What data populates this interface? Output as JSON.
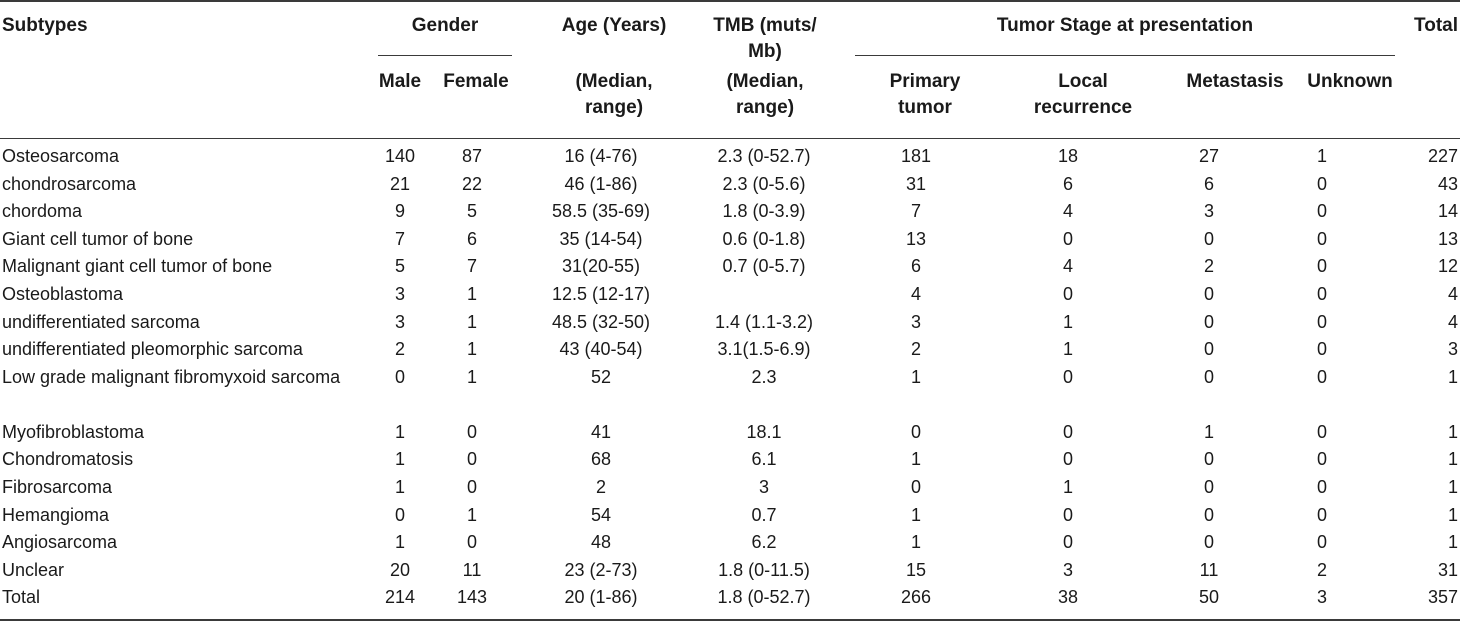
{
  "headers": {
    "subtypes": "Subtypes",
    "gender": "Gender",
    "male": "Male",
    "female": "Female",
    "age_l1": "Age (Years)",
    "age_l2": "(Median,",
    "age_l3": "range)",
    "tmb_l1": "TMB (muts/",
    "tmb_l2": "Mb)",
    "tmb_l3": "(Median,",
    "tmb_l4": "range)",
    "stage": "Tumor Stage at presentation",
    "primary_l1": "Primary",
    "primary_l2": "tumor",
    "local_l1": "Local",
    "local_l2": "recurrence",
    "metastasis": "Metastasis",
    "unknown": "Unknown",
    "total": "Total"
  },
  "rows": [
    [
      "Osteosarcoma",
      "140",
      "87",
      "16 (4-76)",
      "2.3 (0-52.7)",
      "181",
      "18",
      "27",
      "1",
      "227"
    ],
    [
      "chondrosarcoma",
      "21",
      "22",
      "46 (1-86)",
      "2.3 (0-5.6)",
      "31",
      "6",
      "6",
      "0",
      "43"
    ],
    [
      "chordoma",
      "9",
      "5",
      "58.5 (35-69)",
      "1.8 (0-3.9)",
      "7",
      "4",
      "3",
      "0",
      "14"
    ],
    [
      "Giant cell tumor of bone",
      "7",
      "6",
      "35 (14-54)",
      "0.6 (0-1.8)",
      "13",
      "0",
      "0",
      "0",
      "13"
    ],
    [
      "Malignant giant cell tumor of bone",
      "5",
      "7",
      "31(20-55)",
      "0.7 (0-5.7)",
      "6",
      "4",
      "2",
      "0",
      "12"
    ],
    [
      "Osteoblastoma",
      "3",
      "1",
      "12.5 (12-17)",
      "",
      "4",
      "0",
      "0",
      "0",
      "4"
    ],
    [
      "undifferentiated sarcoma",
      "3",
      "1",
      "48.5 (32-50)",
      "1.4 (1.1-3.2)",
      "3",
      "1",
      "0",
      "0",
      "4"
    ],
    [
      "undifferentiated pleomorphic sarcoma",
      "2",
      "1",
      "43 (40-54)",
      "3.1(1.5-6.9)",
      "2",
      "1",
      "0",
      "0",
      "3"
    ],
    [
      "Low grade malignant fibromyxoid sarcoma",
      "0",
      "1",
      "52",
      "2.3",
      "1",
      "0",
      "0",
      "0",
      "1"
    ],
    [
      "Myofibroblastoma",
      "1",
      "0",
      "41",
      "18.1",
      "0",
      "0",
      "1",
      "0",
      "1"
    ],
    [
      "Chondromatosis",
      "1",
      "0",
      "68",
      "6.1",
      "1",
      "0",
      "0",
      "0",
      "1"
    ],
    [
      "Fibrosarcoma",
      "1",
      "0",
      "2",
      "3",
      "0",
      "1",
      "0",
      "0",
      "1"
    ],
    [
      "Hemangioma",
      "0",
      "1",
      "54",
      "0.7",
      "1",
      "0",
      "0",
      "0",
      "1"
    ],
    [
      "Angiosarcoma",
      "1",
      "0",
      "48",
      "6.2",
      "1",
      "0",
      "0",
      "0",
      "1"
    ],
    [
      "Unclear",
      "20",
      "11",
      "23 (2-73)",
      "1.8 (0-11.5)",
      "15",
      "3",
      "11",
      "2",
      "31"
    ],
    [
      "Total",
      "214",
      "143",
      "20 (1-86)",
      "1.8 (0-52.7)",
      "266",
      "38",
      "50",
      "3",
      "357"
    ]
  ]
}
